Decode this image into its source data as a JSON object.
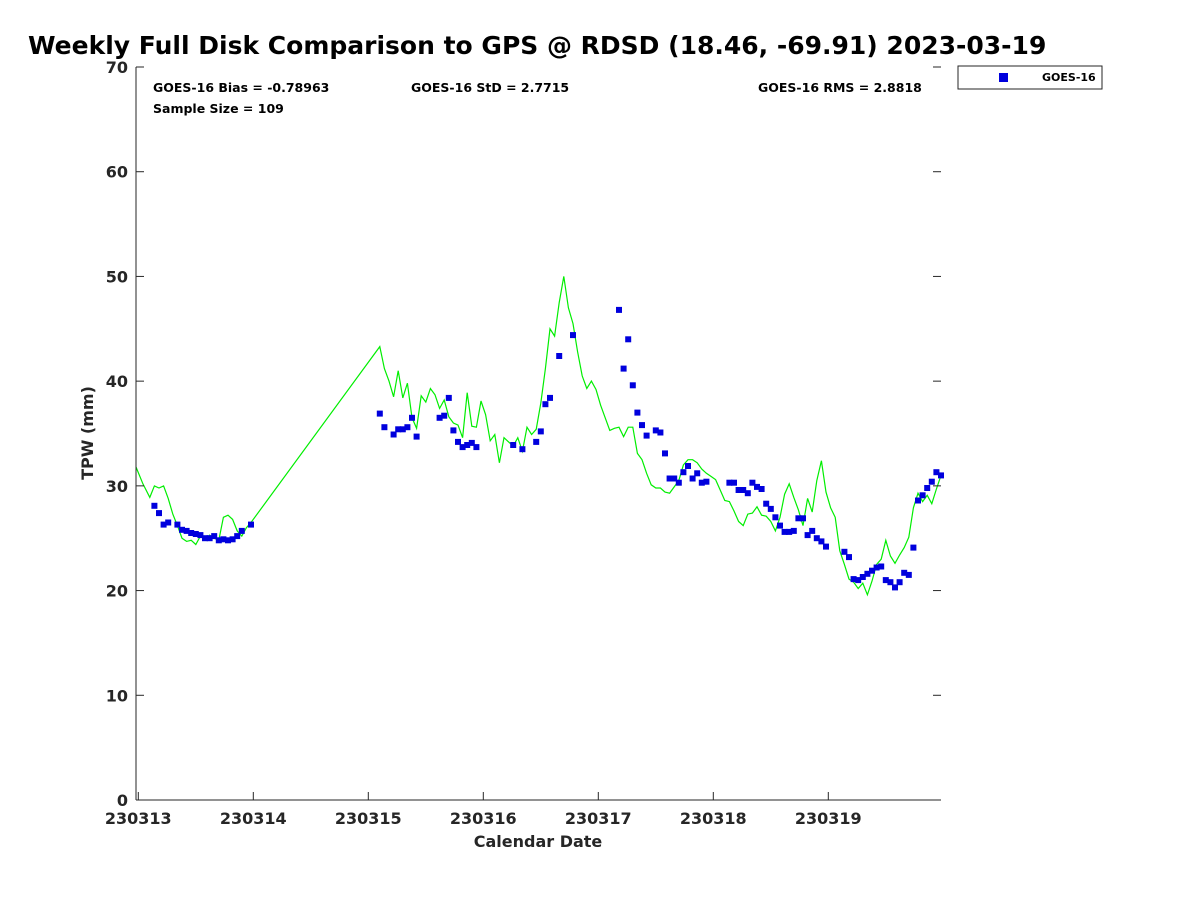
{
  "chart_data": {
    "type": "scatter",
    "title": "Weekly Full Disk Comparison to GPS @ RDSD (18.46, -69.91) 2023-03-19",
    "xlabel": "Calendar Date",
    "ylabel": "TPW (mm)",
    "x_unit": "days",
    "x_ticks": [
      {
        "day": 0,
        "label": "230313"
      },
      {
        "day": 1,
        "label": "230314"
      },
      {
        "day": 2,
        "label": "230315"
      },
      {
        "day": 3,
        "label": "230316"
      },
      {
        "day": 4,
        "label": "230317"
      },
      {
        "day": 5,
        "label": "230318"
      },
      {
        "day": 6,
        "label": "230319"
      }
    ],
    "xlim": [
      -0.02,
      6.98
    ],
    "ylim": [
      0,
      70
    ],
    "yticks": [
      0,
      10,
      20,
      30,
      40,
      50,
      60,
      70
    ],
    "grid": false,
    "legend_position": "top-right-outside",
    "stats": {
      "bias": "GOES-16 Bias = -0.78963",
      "std": "GOES-16 StD = 2.7715",
      "rms": "GOES-16 RMS = 2.8818",
      "sample": "Sample Size = 109"
    },
    "series": [
      {
        "name": "GOES-16",
        "kind": "scatter",
        "color": "#0000dd",
        "x": [
          0.14,
          0.18,
          0.22,
          0.26,
          0.34,
          0.38,
          0.42,
          0.46,
          0.5,
          0.54,
          0.58,
          0.62,
          0.66,
          0.7,
          0.74,
          0.78,
          0.82,
          0.86,
          0.9,
          0.98,
          2.1,
          2.14,
          2.22,
          2.26,
          2.3,
          2.34,
          2.38,
          2.42,
          2.62,
          2.66,
          2.7,
          2.74,
          2.78,
          2.82,
          2.86,
          2.9,
          2.94,
          3.26,
          3.34,
          3.46,
          3.5,
          3.54,
          3.58,
          3.66,
          3.78,
          4.18,
          4.22,
          4.26,
          4.3,
          4.34,
          4.38,
          4.42,
          4.5,
          4.54,
          4.58,
          4.62,
          4.66,
          4.7,
          4.74,
          4.78,
          4.82,
          4.86,
          4.9,
          4.94,
          5.14,
          5.18,
          5.22,
          5.26,
          5.3,
          5.34,
          5.38,
          5.42,
          5.46,
          5.5,
          5.54,
          5.58,
          5.62,
          5.66,
          5.7,
          5.74,
          5.78,
          5.82,
          5.86,
          5.9,
          5.94,
          5.98,
          6.14,
          6.18,
          6.22,
          6.26,
          6.3,
          6.34,
          6.38,
          6.42,
          6.46,
          6.5,
          6.54,
          6.58,
          6.62,
          6.66,
          6.7,
          6.74,
          6.78,
          6.82,
          6.86,
          6.9,
          6.94
        ],
        "y": [
          28.1,
          27.4,
          26.3,
          26.5,
          26.3,
          25.8,
          25.7,
          25.5,
          25.4,
          25.3,
          25.0,
          25.0,
          25.2,
          24.8,
          24.9,
          24.8,
          24.9,
          25.2,
          25.7,
          26.3,
          36.9,
          35.6,
          34.9,
          35.4,
          35.4,
          35.6,
          36.5,
          34.7,
          36.5,
          36.7,
          38.4,
          35.3,
          34.2,
          33.7,
          33.9,
          34.1,
          33.7,
          33.9,
          33.5,
          34.2,
          35.2,
          37.8,
          38.4,
          42.4,
          44.4,
          46.8,
          41.2,
          44.0,
          39.6,
          37.0,
          35.8,
          34.8,
          35.3,
          35.1,
          33.1,
          30.7,
          30.7,
          30.3,
          31.3,
          31.9,
          30.7,
          31.2,
          30.3,
          30.4,
          30.3,
          30.3,
          29.6,
          29.6,
          29.3,
          30.3,
          29.9,
          29.7,
          28.3,
          27.8,
          27.0,
          26.2,
          25.6,
          25.6,
          25.7,
          26.9,
          26.9,
          25.3,
          25.7,
          25.0,
          24.7,
          24.2,
          23.7,
          23.2,
          21.1,
          21.0,
          21.3,
          21.6,
          21.9,
          22.2,
          22.3,
          21.0,
          20.8,
          20.3,
          20.8,
          21.7,
          21.5,
          24.1,
          28.6,
          29.1,
          29.8,
          30.4,
          31.3
        ],
        "x_extra": [
          6.98
        ],
        "y_extra": [
          31.0
        ]
      },
      {
        "name": "",
        "kind": "line",
        "color": "#00ee00",
        "x": [
          -0.02,
          0.04,
          0.1,
          0.14,
          0.18,
          0.22,
          0.26,
          0.3,
          0.34,
          0.38,
          0.42,
          0.46,
          0.5,
          0.54,
          0.58,
          0.62,
          0.66,
          0.7,
          0.74,
          0.78,
          0.82,
          0.86,
          0.9,
          0.94,
          0.98,
          2.1,
          2.14,
          2.18,
          2.22,
          2.26,
          2.3,
          2.34,
          2.38,
          2.42,
          2.46,
          2.5,
          2.54,
          2.58,
          2.62,
          2.66,
          2.7,
          2.74,
          2.78,
          2.82,
          2.86,
          2.9,
          2.94,
          2.98,
          3.02,
          3.06,
          3.1,
          3.14,
          3.18,
          3.22,
          3.26,
          3.3,
          3.34,
          3.38,
          3.42,
          3.46,
          3.5,
          3.54,
          3.58,
          3.62,
          3.66,
          3.7,
          3.74,
          3.78,
          3.82,
          3.86,
          3.9,
          3.94,
          3.98,
          4.02,
          4.06,
          4.1,
          4.14,
          4.18,
          4.22,
          4.26,
          4.3,
          4.34,
          4.38,
          4.42,
          4.46,
          4.5,
          4.54,
          4.58,
          4.62,
          4.66,
          4.7,
          4.74,
          4.78,
          4.82,
          4.86,
          4.9,
          4.94,
          4.98,
          5.02,
          5.06,
          5.1,
          5.14,
          5.18,
          5.22,
          5.26,
          5.3,
          5.34,
          5.38,
          5.42,
          5.46,
          5.5,
          5.54,
          5.58,
          5.62,
          5.66,
          5.7,
          5.74,
          5.78,
          5.82,
          5.86,
          5.9,
          5.94,
          5.98,
          6.02,
          6.06,
          6.1,
          6.14,
          6.18,
          6.22,
          6.26,
          6.3,
          6.34,
          6.38,
          6.42,
          6.46,
          6.5,
          6.54,
          6.58,
          6.62,
          6.66,
          6.7,
          6.74,
          6.78,
          6.82,
          6.86,
          6.9,
          6.94,
          6.98
        ],
        "y": [
          31.8,
          30.2,
          28.9,
          30.0,
          29.8,
          30.0,
          28.8,
          27.3,
          26.2,
          25.0,
          24.7,
          24.8,
          24.4,
          25.2,
          24.9,
          25.3,
          25.0,
          24.8,
          27.0,
          27.2,
          26.8,
          25.7,
          25.2,
          26.0,
          26.5,
          43.3,
          41.2,
          40.0,
          38.5,
          41.0,
          38.4,
          39.8,
          36.5,
          35.5,
          38.6,
          38.0,
          39.3,
          38.7,
          37.4,
          38.2,
          36.6,
          36.0,
          35.8,
          34.6,
          38.9,
          35.7,
          35.6,
          38.1,
          36.8,
          34.3,
          34.9,
          32.2,
          34.6,
          34.2,
          33.8,
          34.6,
          33.3,
          35.6,
          34.9,
          35.4,
          37.9,
          41.2,
          45.0,
          44.3,
          47.5,
          50.0,
          47.0,
          45.5,
          42.8,
          40.5,
          39.3,
          40.0,
          39.2,
          37.7,
          36.5,
          35.3,
          35.5,
          35.6,
          34.7,
          35.6,
          35.6,
          33.1,
          32.5,
          31.2,
          30.1,
          29.8,
          29.8,
          29.4,
          29.3,
          29.9,
          30.5,
          32.0,
          32.5,
          32.5,
          32.2,
          31.6,
          31.2,
          30.9,
          30.6,
          29.6,
          28.6,
          28.5,
          27.6,
          26.6,
          26.2,
          27.3,
          27.4,
          28.0,
          27.2,
          27.1,
          26.6,
          25.7,
          27.0,
          29.2,
          30.2,
          28.9,
          27.7,
          26.2,
          28.8,
          27.5,
          30.5,
          32.4,
          29.4,
          27.9,
          27.0,
          23.8,
          22.5,
          21.1,
          20.8,
          20.2,
          20.7,
          19.6,
          20.9,
          22.5,
          23.0,
          24.8,
          23.3,
          22.6,
          23.4,
          24.1,
          25.1,
          27.9,
          29.3,
          28.5,
          29.1,
          28.3,
          29.7,
          31.0
        ]
      }
    ]
  }
}
